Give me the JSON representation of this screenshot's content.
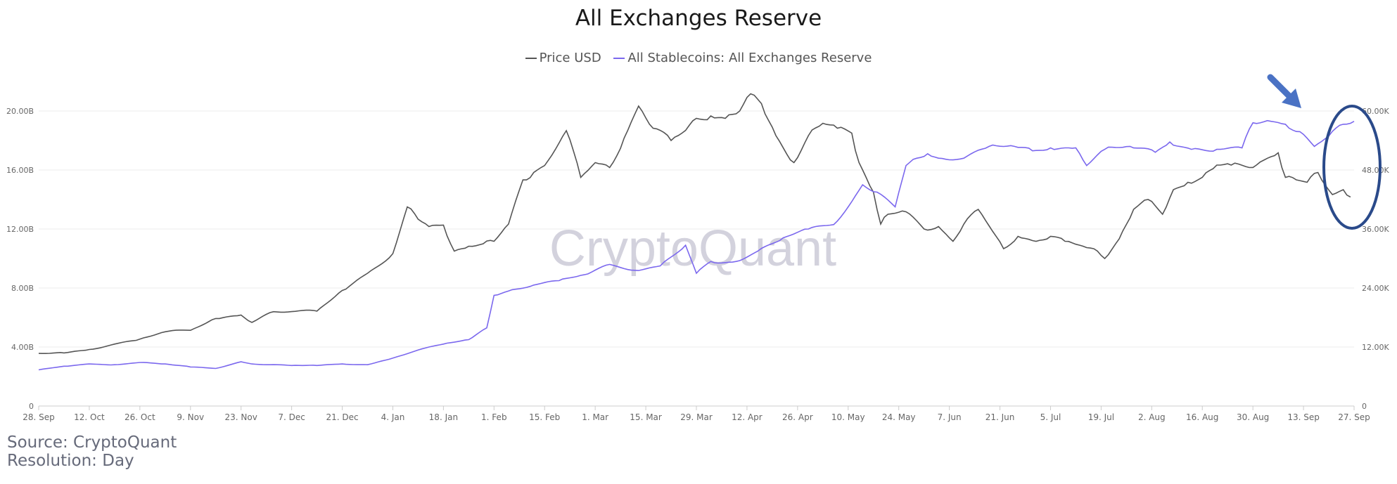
{
  "chart_data": {
    "type": "line",
    "title": "All Exchanges Reserve",
    "xlabel": "",
    "x_ticks": [
      "28. Sep",
      "12. Oct",
      "26. Oct",
      "9. Nov",
      "23. Nov",
      "7. Dec",
      "21. Dec",
      "4. Jan",
      "18. Jan",
      "1. Feb",
      "15. Feb",
      "1. Mar",
      "15. Mar",
      "29. Mar",
      "12. Apr",
      "26. Apr",
      "10. May",
      "24. May",
      "7. Jun",
      "21. Jun",
      "5. Jul",
      "19. Jul",
      "2. Aug",
      "16. Aug",
      "30. Aug",
      "13. Sep",
      "27. Sep"
    ],
    "y_left": {
      "ticks": [
        "0",
        "4.00B",
        "8.00B",
        "12.00B",
        "16.00B",
        "20.00B"
      ],
      "max": 20
    },
    "y_right": {
      "ticks": [
        "0",
        "12.00K",
        "24.00K",
        "36.00K",
        "48.00K",
        "60.00K"
      ],
      "max": 60
    },
    "grid": true,
    "legend_position": "top-center",
    "watermark": "CryptoQuant",
    "series": [
      {
        "name": "Price USD",
        "axis": "right",
        "color": "#555555",
        "x": [
          "2020-09-28",
          "2020-10-05",
          "2020-10-12",
          "2020-10-19",
          "2020-10-26",
          "2020-11-02",
          "2020-11-09",
          "2020-11-16",
          "2020-11-23",
          "2020-11-26",
          "2020-12-01",
          "2020-12-07",
          "2020-12-14",
          "2020-12-21",
          "2020-12-28",
          "2021-01-04",
          "2021-01-08",
          "2021-01-11",
          "2021-01-14",
          "2021-01-18",
          "2021-01-21",
          "2021-01-25",
          "2021-01-29",
          "2021-02-01",
          "2021-02-05",
          "2021-02-09",
          "2021-02-12",
          "2021-02-15",
          "2021-02-21",
          "2021-02-25",
          "2021-03-01",
          "2021-03-05",
          "2021-03-09",
          "2021-03-13",
          "2021-03-17",
          "2021-03-22",
          "2021-03-25",
          "2021-03-29",
          "2021-04-02",
          "2021-04-06",
          "2021-04-10",
          "2021-04-13",
          "2021-04-16",
          "2021-04-20",
          "2021-04-25",
          "2021-04-29",
          "2021-05-03",
          "2021-05-07",
          "2021-05-11",
          "2021-05-13",
          "2021-05-17",
          "2021-05-19",
          "2021-05-21",
          "2021-05-26",
          "2021-05-31",
          "2021-06-04",
          "2021-06-08",
          "2021-06-11",
          "2021-06-15",
          "2021-06-19",
          "2021-06-22",
          "2021-06-26",
          "2021-07-01",
          "2021-07-05",
          "2021-07-09",
          "2021-07-14",
          "2021-07-18",
          "2021-07-20",
          "2021-07-24",
          "2021-07-28",
          "2021-08-01",
          "2021-08-05",
          "2021-08-08",
          "2021-08-12",
          "2021-08-16",
          "2021-08-20",
          "2021-08-24",
          "2021-08-29",
          "2021-09-02",
          "2021-09-06",
          "2021-09-08",
          "2021-09-11",
          "2021-09-14",
          "2021-09-17",
          "2021-09-21",
          "2021-09-24",
          "2021-09-26"
        ],
        "values": [
          10.7,
          10.8,
          11.5,
          12.6,
          13.6,
          15.1,
          15.4,
          17.8,
          18.5,
          17.0,
          19.0,
          19.2,
          19.3,
          23.5,
          27.0,
          31.0,
          40.5,
          38.0,
          36.5,
          36.8,
          31.5,
          32.5,
          33.0,
          33.5,
          37.0,
          46.0,
          47.5,
          48.9,
          56.0,
          46.5,
          49.5,
          48.5,
          54.5,
          61.0,
          56.5,
          54.0,
          55.5,
          58.5,
          59.0,
          58.5,
          60.0,
          63.5,
          61.5,
          55.0,
          49.5,
          55.0,
          57.5,
          56.5,
          55.5,
          49.5,
          43.5,
          37.0,
          39.0,
          39.5,
          36.0,
          36.5,
          33.5,
          37.0,
          40.0,
          35.5,
          32.0,
          34.5,
          33.5,
          34.5,
          33.5,
          32.5,
          31.5,
          30.0,
          34.0,
          40.0,
          42.0,
          39.0,
          44.0,
          45.5,
          46.5,
          49.0,
          49.0,
          48.5,
          50.0,
          51.5,
          46.5,
          46.0,
          45.5,
          47.5,
          43.0,
          44.0,
          42.5
        ]
      },
      {
        "name": "All Stablecoins: All Exchanges Reserve",
        "axis": "left",
        "color": "#7b68ee",
        "x": [
          "2020-09-28",
          "2020-10-05",
          "2020-10-12",
          "2020-10-19",
          "2020-10-26",
          "2020-11-02",
          "2020-11-09",
          "2020-11-16",
          "2020-11-23",
          "2020-11-26",
          "2020-12-01",
          "2020-12-07",
          "2020-12-14",
          "2020-12-21",
          "2020-12-28",
          "2021-01-04",
          "2021-01-11",
          "2021-01-18",
          "2021-01-25",
          "2021-01-30",
          "2021-02-01",
          "2021-02-05",
          "2021-02-12",
          "2021-02-19",
          "2021-02-26",
          "2021-03-05",
          "2021-03-12",
          "2021-03-19",
          "2021-03-26",
          "2021-03-29",
          "2021-04-02",
          "2021-04-05",
          "2021-04-09",
          "2021-04-15",
          "2021-04-22",
          "2021-04-29",
          "2021-05-06",
          "2021-05-10",
          "2021-05-14",
          "2021-05-18",
          "2021-05-23",
          "2021-05-26",
          "2021-05-29",
          "2021-06-01",
          "2021-06-04",
          "2021-06-11",
          "2021-06-18",
          "2021-06-25",
          "2021-06-30",
          "2021-07-05",
          "2021-07-12",
          "2021-07-15",
          "2021-07-20",
          "2021-07-27",
          "2021-08-03",
          "2021-08-07",
          "2021-08-13",
          "2021-08-20",
          "2021-08-27",
          "2021-08-30",
          "2021-09-04",
          "2021-09-08",
          "2021-09-12",
          "2021-09-16",
          "2021-09-20",
          "2021-09-24",
          "2021-09-27"
        ],
        "values": [
          2.45,
          2.7,
          2.85,
          2.8,
          2.95,
          2.85,
          2.65,
          2.55,
          3.0,
          2.85,
          2.8,
          2.75,
          2.75,
          2.85,
          2.8,
          3.25,
          3.8,
          4.2,
          4.5,
          5.3,
          7.5,
          7.8,
          8.2,
          8.5,
          8.9,
          9.6,
          9.2,
          9.5,
          10.9,
          9.0,
          9.8,
          9.7,
          9.8,
          10.5,
          11.4,
          12.0,
          12.3,
          13.5,
          15.0,
          14.5,
          13.5,
          16.3,
          16.8,
          17.1,
          16.8,
          16.8,
          17.6,
          17.6,
          17.3,
          17.5,
          17.5,
          16.3,
          17.4,
          17.6,
          17.2,
          17.9,
          17.4,
          17.4,
          17.5,
          19.2,
          19.3,
          19.1,
          18.6,
          17.6,
          18.3,
          19.1,
          19.3
        ]
      }
    ]
  },
  "annotations": {
    "arrow": "down-right-arrow",
    "ellipse_color": "#2a4a8a",
    "arrow_color": "#4a72c4"
  },
  "footer": {
    "source": "Source: CryptoQuant",
    "resolution": "Resolution: Day"
  }
}
